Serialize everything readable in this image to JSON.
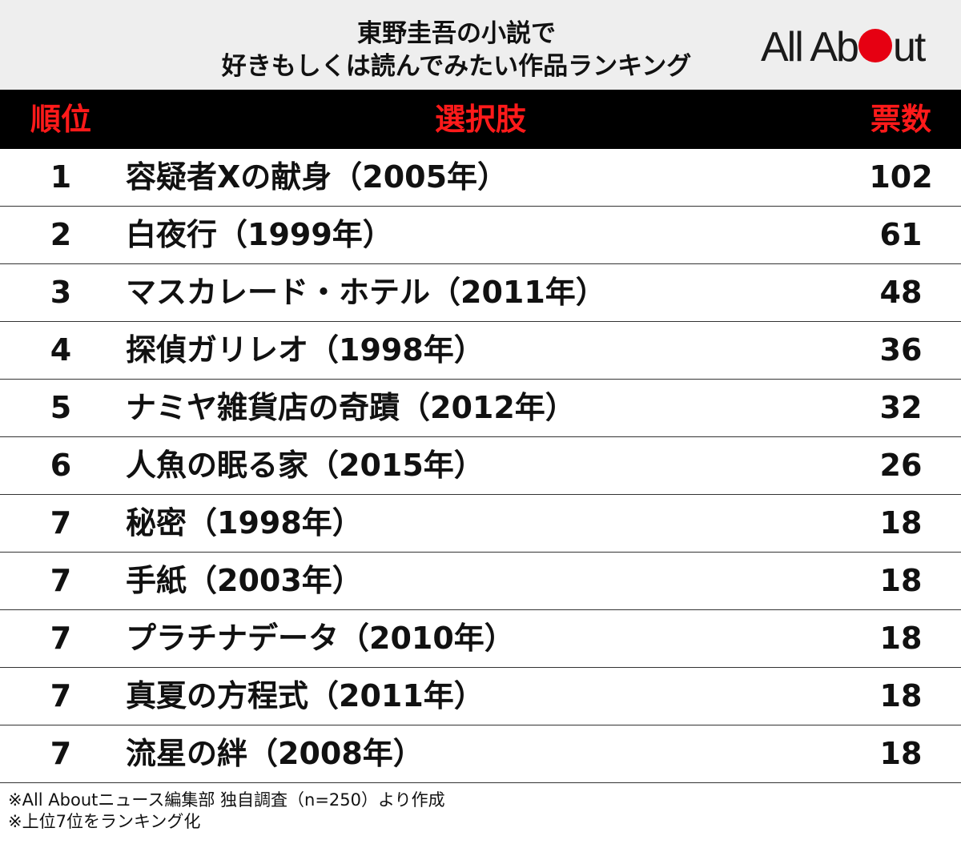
{
  "header": {
    "title_line1": "東野圭吾の小説で",
    "title_line2": "好きもしくは読んでみたい作品ランキング",
    "logo_text_before": "All Ab",
    "logo_text_after": "ut"
  },
  "colors": {
    "header_bg": "#eeeeee",
    "column_header_bg": "#000000",
    "column_header_text": "#ff1a1a",
    "logo_dot": "#e60012"
  },
  "chart_data": {
    "type": "table",
    "columns": [
      "順位",
      "選択肢",
      "票数"
    ],
    "rows": [
      {
        "rank": "1",
        "label": "容疑者Xの献身（2005年）",
        "votes": 102
      },
      {
        "rank": "2",
        "label": "白夜行（1999年）",
        "votes": 61
      },
      {
        "rank": "3",
        "label": "マスカレード・ホテル（2011年）",
        "votes": 48
      },
      {
        "rank": "4",
        "label": "探偵ガリレオ（1998年）",
        "votes": 36
      },
      {
        "rank": "5",
        "label": "ナミヤ雑貨店の奇蹟（2012年）",
        "votes": 32
      },
      {
        "rank": "6",
        "label": "人魚の眠る家（2015年）",
        "votes": 26
      },
      {
        "rank": "7",
        "label": "秘密（1998年）",
        "votes": 18
      },
      {
        "rank": "7",
        "label": "手紙（2003年）",
        "votes": 18
      },
      {
        "rank": "7",
        "label": "プラチナデータ（2010年）",
        "votes": 18
      },
      {
        "rank": "7",
        "label": "真夏の方程式（2011年）",
        "votes": 18
      },
      {
        "rank": "7",
        "label": "流星の絆（2008年）",
        "votes": 18
      }
    ]
  },
  "notes": {
    "line1": "※All Aboutニュース編集部 独自調査（n=250）より作成",
    "line2": "※上位7位をランキング化"
  }
}
